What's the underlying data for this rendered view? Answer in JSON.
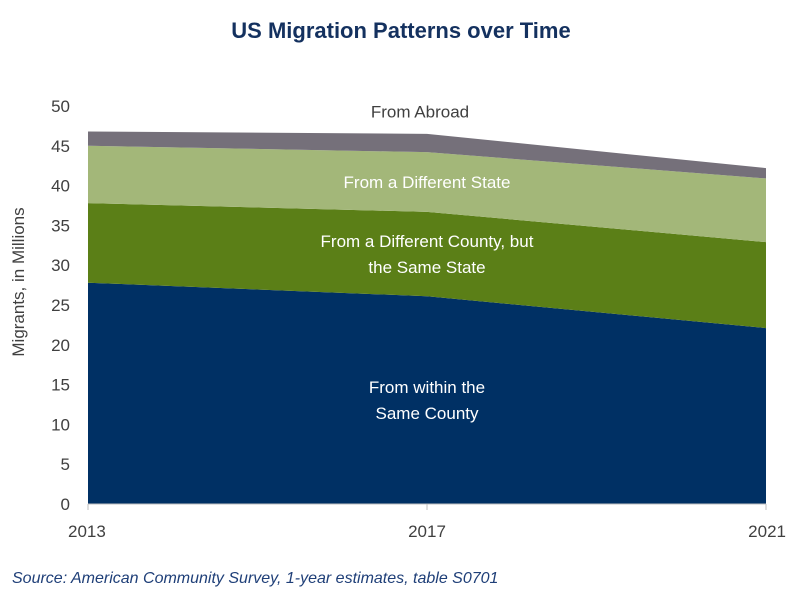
{
  "chart_data": {
    "type": "area",
    "stacked": true,
    "title": "US Migration Patterns over Time",
    "ylabel": "Migrants, in Millions",
    "xlabel": "",
    "x": [
      "2013",
      "2017",
      "2021"
    ],
    "x_ticks": [
      "2013",
      "2017",
      "2021"
    ],
    "y_ticks": [
      "0",
      "5",
      "10",
      "15",
      "20",
      "25",
      "30",
      "35",
      "40",
      "45",
      "50"
    ],
    "ylim": [
      0,
      50
    ],
    "grid": false,
    "series": [
      {
        "name": "From within the Same County",
        "values": [
          27.8,
          26.1,
          22.1
        ],
        "color": "#003064",
        "label_lines": [
          "From within the",
          "Same County"
        ],
        "label_color": "#ffffff"
      },
      {
        "name": "From a Different County, but the Same State",
        "values": [
          10.0,
          10.6,
          10.8
        ],
        "color": "#5b7f17",
        "label_lines": [
          "From a Different County, but",
          "the Same State"
        ],
        "label_color": "#ffffff"
      },
      {
        "name": "From a Different  State",
        "values": [
          7.2,
          7.5,
          8.0
        ],
        "color": "#a3b779",
        "label_lines": [
          "From a Different  State"
        ],
        "label_color": "#ffffff"
      },
      {
        "name": "From Abroad",
        "values": [
          1.8,
          2.3,
          1.3
        ],
        "color": "#75707a",
        "label_lines": [
          "From Abroad"
        ],
        "label_color": "#404040"
      }
    ]
  },
  "source": "Source: American Community Survey, 1-year estimates, table S0701"
}
